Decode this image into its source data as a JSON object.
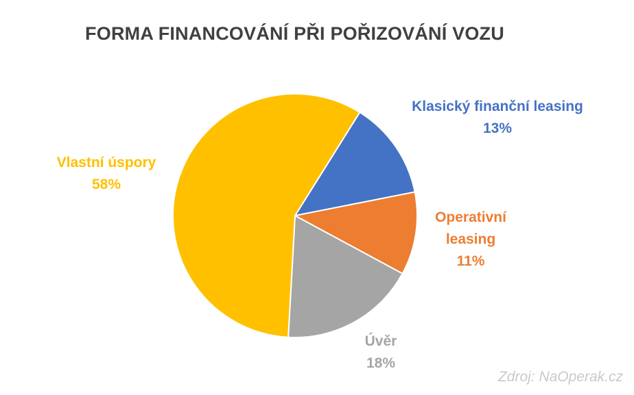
{
  "chart_data": {
    "type": "pie",
    "title": "FORMA FINANCOVÁNÍ PŘI POŘIZOVÁNÍ VOZU",
    "slices": [
      {
        "label": "Klasický finanční leasing",
        "label_lines": [
          "Klasický finanční leasing"
        ],
        "percent_label": "13%",
        "value": 13,
        "color": "#4472C4"
      },
      {
        "label": "Operativní leasing",
        "label_lines": [
          "Operativní",
          "leasing"
        ],
        "percent_label": "11%",
        "value": 11,
        "color": "#ED7D31"
      },
      {
        "label": "Úvěr",
        "label_lines": [
          "Úvěr"
        ],
        "percent_label": "18%",
        "value": 18,
        "color": "#A5A5A5"
      },
      {
        "label": "Vlastní úspory",
        "label_lines": [
          "Vlastní úspory"
        ],
        "percent_label": "58%",
        "value": 58,
        "color": "#FFC000"
      }
    ],
    "legend": "none",
    "data_labels": "outside, category name and percentage"
  },
  "source": "Zdroj: NaOperak.cz"
}
